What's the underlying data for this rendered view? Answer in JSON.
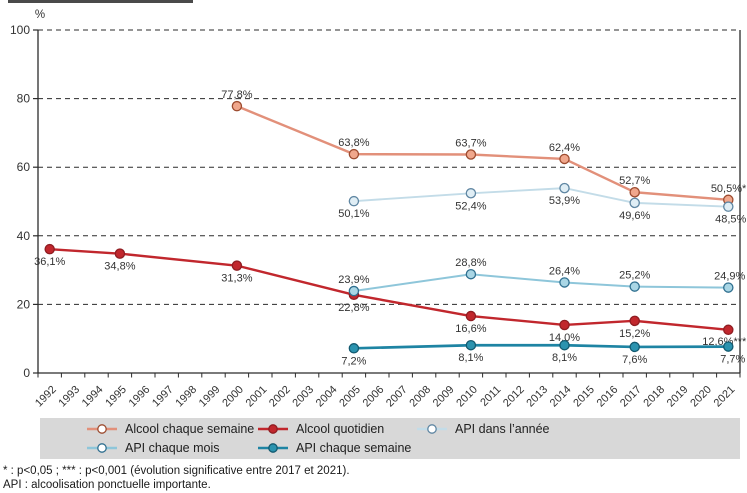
{
  "chart_data": {
    "type": "line",
    "unit_label": "%",
    "ylim": [
      0,
      100
    ],
    "yticks": [
      "0",
      "20",
      "40",
      "60",
      "80",
      "100"
    ],
    "grid": "dashed-horizontal",
    "x_categories": [
      "1992",
      "1993",
      "1994",
      "1995",
      "1996",
      "1997",
      "1998",
      "1999",
      "2000",
      "2001",
      "2002",
      "2003",
      "2004",
      "2005",
      "2006",
      "2007",
      "2008",
      "2009",
      "2010",
      "2011",
      "2012",
      "2013",
      "2014",
      "2015",
      "2016",
      "2017",
      "2018",
      "2019",
      "2020",
      "2021"
    ],
    "legend_position": "bottom",
    "series": [
      {
        "name": "Alcool chaque semaine",
        "line_color": "#e2907a",
        "marker_fill": "#f0a78c",
        "marker_stroke": "#9c4b2f",
        "legend_fill": "#ffffff",
        "points": [
          {
            "year": 2000,
            "value": 77.8,
            "label": "77,8%",
            "label_pos": "above"
          },
          {
            "year": 2005,
            "value": 63.8,
            "label": "63,8%",
            "label_pos": "above"
          },
          {
            "year": 2010,
            "value": 63.7,
            "label": "63,7%",
            "label_pos": "above"
          },
          {
            "year": 2014,
            "value": 62.4,
            "label": "62,4%",
            "label_pos": "above"
          },
          {
            "year": 2017,
            "value": 52.7,
            "label": "52,7%",
            "label_pos": "above"
          },
          {
            "year": 2021,
            "value": 50.5,
            "label": "50,5%*",
            "label_pos": "above",
            "label_anchor": "end",
            "label_dx": 18
          }
        ]
      },
      {
        "name": "Alcool quotidien",
        "line_color": "#c1272d",
        "marker_fill": "#c1272d",
        "marker_stroke": "#8f1d22",
        "legend_fill": "#c1272d",
        "points": [
          {
            "year": 1992,
            "value": 36.1,
            "label": "36,1%",
            "label_pos": "below"
          },
          {
            "year": 1995,
            "value": 34.8,
            "label": "34,8%",
            "label_pos": "below"
          },
          {
            "year": 2000,
            "value": 31.3,
            "label": "31,3%",
            "label_pos": "below"
          },
          {
            "year": 2005,
            "value": 22.8,
            "label": "22,8%",
            "label_pos": "below"
          },
          {
            "year": 2010,
            "value": 16.6,
            "label": "16,6%",
            "label_pos": "below"
          },
          {
            "year": 2014,
            "value": 14.0,
            "label": "14,0%",
            "label_pos": "below"
          },
          {
            "year": 2017,
            "value": 15.2,
            "label": "15,2%",
            "label_pos": "below"
          },
          {
            "year": 2021,
            "value": 12.6,
            "label": "12,6%***",
            "label_pos": "below",
            "label_anchor": "end",
            "label_dx": 18,
            "label_dy": 15
          }
        ]
      },
      {
        "name": "API dans l’année",
        "line_color": "#c3dce8",
        "marker_fill": "#e0eef5",
        "marker_stroke": "#5f86a2",
        "legend_fill": "#ffffff",
        "points": [
          {
            "year": 2005,
            "value": 50.1,
            "label": "50,1%",
            "label_pos": "below"
          },
          {
            "year": 2010,
            "value": 52.4,
            "label": "52,4%",
            "label_pos": "below"
          },
          {
            "year": 2014,
            "value": 53.9,
            "label": "53,9%",
            "label_pos": "below"
          },
          {
            "year": 2017,
            "value": 49.6,
            "label": "49,6%",
            "label_pos": "below"
          },
          {
            "year": 2021,
            "value": 48.5,
            "label": "48,5%",
            "label_pos": "below",
            "label_anchor": "end",
            "label_dx": 18
          }
        ]
      },
      {
        "name": "API chaque mois",
        "line_color": "#8ec6da",
        "marker_fill": "#a9d6e5",
        "marker_stroke": "#2f6f8f",
        "legend_fill": "#ffffff",
        "points": [
          {
            "year": 2005,
            "value": 23.9,
            "label": "23,9%",
            "label_pos": "above"
          },
          {
            "year": 2010,
            "value": 28.8,
            "label": "28,8%",
            "label_pos": "above"
          },
          {
            "year": 2014,
            "value": 26.4,
            "label": "26,4%",
            "label_pos": "above"
          },
          {
            "year": 2017,
            "value": 25.2,
            "label": "25,2%",
            "label_pos": "above"
          },
          {
            "year": 2021,
            "value": 24.9,
            "label": "24,9%",
            "label_pos": "above",
            "label_anchor": "end",
            "label_dx": 17
          }
        ]
      },
      {
        "name": "API chaque semaine",
        "line_color": "#1e84a3",
        "marker_fill": "#2b93af",
        "marker_stroke": "#135a70",
        "legend_fill": "#2b93af",
        "points": [
          {
            "year": 2005,
            "value": 7.2,
            "label": "7,2%",
            "label_pos": "below"
          },
          {
            "year": 2010,
            "value": 8.1,
            "label": "8,1%",
            "label_pos": "below"
          },
          {
            "year": 2014,
            "value": 8.1,
            "label": "8,1%",
            "label_pos": "below"
          },
          {
            "year": 2017,
            "value": 7.6,
            "label": "7,6%",
            "label_pos": "below"
          },
          {
            "year": 2021,
            "value": 7.7,
            "label": "7,7%",
            "label_pos": "below",
            "label_anchor": "end",
            "label_dx": 17
          }
        ]
      }
    ]
  },
  "footnotes": [
    "* : p<0,05 ; *** : p<0,001 (évolution significative entre 2017 et 2021).",
    "API : alcoolisation ponctuelle importante."
  ]
}
